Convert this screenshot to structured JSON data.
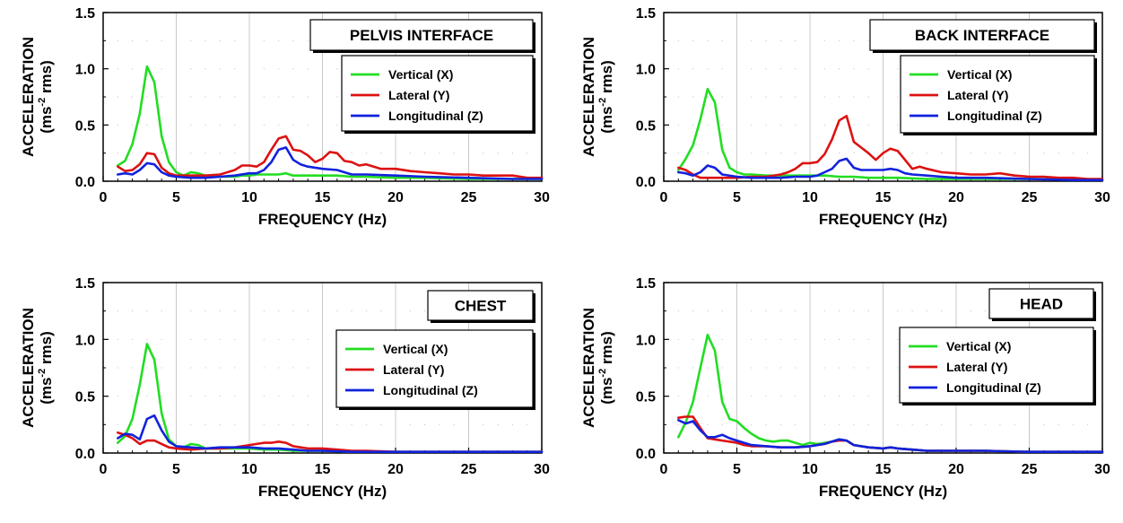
{
  "chart_data": [
    {
      "type": "line",
      "title": "PELVIS INTERFACE",
      "xlabel": "FREQUENCY (Hz)",
      "ylabel_line1": "ACCELERATION",
      "ylabel_line2_pre": "(ms",
      "ylabel_line2_sup": "-2",
      "ylabel_line2_post": " rms)",
      "xlim": [
        0,
        30
      ],
      "ylim": [
        0,
        1.5
      ],
      "xticks": [
        "0",
        "5",
        "10",
        "15",
        "20",
        "25",
        "30"
      ],
      "yticks": [
        "0.0",
        "0.5",
        "1.0",
        "1.5"
      ],
      "grid": true,
      "legend_position": "top-right",
      "series": [
        {
          "name": "Vertical (X)",
          "color": "#22dd22",
          "x": [
            1,
            1.5,
            2,
            2.5,
            3,
            3.5,
            4,
            4.5,
            5,
            5.5,
            6,
            6.5,
            7,
            7.5,
            8,
            8.5,
            9,
            9.5,
            10,
            10.5,
            11,
            11.5,
            12,
            12.5,
            13,
            13.5,
            14,
            15,
            16,
            17,
            18,
            20,
            22,
            25,
            28,
            30
          ],
          "y": [
            0.14,
            0.18,
            0.33,
            0.6,
            1.02,
            0.88,
            0.4,
            0.17,
            0.08,
            0.05,
            0.08,
            0.07,
            0.05,
            0.04,
            0.04,
            0.04,
            0.04,
            0.05,
            0.05,
            0.06,
            0.06,
            0.06,
            0.06,
            0.07,
            0.05,
            0.05,
            0.05,
            0.05,
            0.05,
            0.04,
            0.04,
            0.03,
            0.03,
            0.02,
            0.02,
            0.02
          ]
        },
        {
          "name": "Lateral (Y)",
          "color": "#dd1111",
          "x": [
            1,
            1.5,
            2,
            2.5,
            3,
            3.5,
            4,
            4.5,
            5,
            5.5,
            6,
            7,
            8,
            9,
            9.5,
            10,
            10.5,
            11,
            11.5,
            12,
            12.5,
            13,
            13.5,
            14,
            14.5,
            15,
            15.5,
            16,
            16.5,
            17,
            17.5,
            18,
            19,
            20,
            21,
            22,
            23,
            24,
            25,
            26,
            27,
            28,
            29,
            30
          ],
          "y": [
            0.13,
            0.09,
            0.1,
            0.15,
            0.25,
            0.24,
            0.12,
            0.07,
            0.05,
            0.05,
            0.05,
            0.05,
            0.06,
            0.1,
            0.14,
            0.14,
            0.13,
            0.17,
            0.28,
            0.38,
            0.4,
            0.28,
            0.27,
            0.23,
            0.17,
            0.2,
            0.26,
            0.25,
            0.18,
            0.17,
            0.14,
            0.15,
            0.11,
            0.11,
            0.09,
            0.08,
            0.07,
            0.06,
            0.06,
            0.05,
            0.05,
            0.05,
            0.03,
            0.03
          ]
        },
        {
          "name": "Longitudinal (Z)",
          "color": "#1122dd",
          "x": [
            1,
            1.5,
            2,
            2.5,
            3,
            3.5,
            4,
            4.5,
            5,
            6,
            7,
            8,
            9,
            10,
            10.5,
            11,
            11.5,
            12,
            12.5,
            13,
            13.5,
            14,
            15,
            16,
            17,
            18,
            20,
            22,
            25,
            28,
            30
          ],
          "y": [
            0.06,
            0.07,
            0.06,
            0.1,
            0.16,
            0.15,
            0.08,
            0.05,
            0.04,
            0.03,
            0.03,
            0.04,
            0.05,
            0.07,
            0.07,
            0.1,
            0.17,
            0.28,
            0.3,
            0.19,
            0.15,
            0.13,
            0.11,
            0.1,
            0.06,
            0.06,
            0.05,
            0.04,
            0.03,
            0.02,
            0.02
          ]
        }
      ]
    },
    {
      "type": "line",
      "title": "BACK INTERFACE",
      "xlabel": "FREQUENCY (Hz)",
      "ylabel_line1": "ACCELERATION",
      "ylabel_line2_pre": "(ms",
      "ylabel_line2_sup": "-2",
      "ylabel_line2_post": " rms)",
      "xlim": [
        0,
        30
      ],
      "ylim": [
        0,
        1.5
      ],
      "xticks": [
        "0",
        "5",
        "10",
        "15",
        "20",
        "25",
        "30"
      ],
      "yticks": [
        "0.0",
        "0.5",
        "1.0",
        "1.5"
      ],
      "grid": true,
      "legend_position": "top-right",
      "series": [
        {
          "name": "Vertical (X)",
          "color": "#22dd22",
          "x": [
            1,
            1.5,
            2,
            2.5,
            3,
            3.5,
            4,
            4.5,
            5,
            5.5,
            6,
            7,
            8,
            9,
            10,
            11,
            12,
            13,
            14,
            15,
            16,
            18,
            20,
            25,
            30
          ],
          "y": [
            0.1,
            0.2,
            0.32,
            0.55,
            0.82,
            0.7,
            0.28,
            0.12,
            0.08,
            0.06,
            0.06,
            0.05,
            0.05,
            0.05,
            0.05,
            0.05,
            0.04,
            0.04,
            0.03,
            0.03,
            0.03,
            0.02,
            0.02,
            0.02,
            0.01
          ]
        },
        {
          "name": "Lateral (Y)",
          "color": "#dd1111",
          "x": [
            1,
            1.5,
            2,
            2.5,
            3,
            3.5,
            4,
            5,
            6,
            7,
            8,
            8.5,
            9,
            9.5,
            10,
            10.5,
            11,
            11.5,
            12,
            12.5,
            13,
            13.5,
            14,
            14.5,
            15,
            15.5,
            16,
            16.5,
            17,
            17.5,
            18,
            19,
            20,
            21,
            22,
            23,
            24,
            25,
            26,
            27,
            28,
            29,
            30
          ],
          "y": [
            0.12,
            0.1,
            0.06,
            0.03,
            0.03,
            0.03,
            0.03,
            0.03,
            0.04,
            0.04,
            0.06,
            0.08,
            0.11,
            0.16,
            0.16,
            0.17,
            0.24,
            0.37,
            0.54,
            0.58,
            0.35,
            0.3,
            0.25,
            0.19,
            0.25,
            0.29,
            0.27,
            0.19,
            0.11,
            0.13,
            0.11,
            0.08,
            0.07,
            0.06,
            0.06,
            0.07,
            0.05,
            0.04,
            0.04,
            0.03,
            0.03,
            0.02,
            0.02
          ]
        },
        {
          "name": "Longitudinal (Z)",
          "color": "#1122dd",
          "x": [
            1,
            1.5,
            2,
            2.5,
            3,
            3.5,
            4,
            5,
            6,
            7,
            8,
            9,
            10,
            10.5,
            11,
            11.5,
            12,
            12.5,
            13,
            13.5,
            14,
            15,
            15.5,
            16,
            16.5,
            17,
            18,
            19,
            20,
            22,
            25,
            28,
            30
          ],
          "y": [
            0.08,
            0.07,
            0.05,
            0.08,
            0.14,
            0.12,
            0.06,
            0.04,
            0.03,
            0.03,
            0.03,
            0.04,
            0.04,
            0.05,
            0.08,
            0.11,
            0.18,
            0.2,
            0.12,
            0.1,
            0.1,
            0.1,
            0.11,
            0.1,
            0.07,
            0.06,
            0.05,
            0.04,
            0.03,
            0.03,
            0.02,
            0.01,
            0.01
          ]
        }
      ]
    },
    {
      "type": "line",
      "title": "CHEST",
      "xlabel": "FREQUENCY (Hz)",
      "ylabel_line1": "ACCELERATION",
      "ylabel_line2_pre": "(ms",
      "ylabel_line2_sup": "-2",
      "ylabel_line2_post": " rms)",
      "xlim": [
        0,
        30
      ],
      "ylim": [
        0,
        1.5
      ],
      "xticks": [
        "0",
        "5",
        "10",
        "15",
        "20",
        "25",
        "30"
      ],
      "yticks": [
        "0.0",
        "0.5",
        "1.0",
        "1.5"
      ],
      "grid": true,
      "legend_position": "top-right",
      "series": [
        {
          "name": "Vertical (X)",
          "color": "#22dd22",
          "x": [
            1,
            1.5,
            2,
            2.5,
            3,
            3.5,
            4,
            4.5,
            5,
            5.5,
            6,
            6.5,
            7,
            8,
            9,
            10,
            11,
            12,
            13,
            14,
            15,
            17,
            20,
            25,
            30
          ],
          "y": [
            0.09,
            0.15,
            0.3,
            0.6,
            0.96,
            0.82,
            0.35,
            0.12,
            0.06,
            0.05,
            0.08,
            0.07,
            0.04,
            0.04,
            0.04,
            0.04,
            0.03,
            0.03,
            0.02,
            0.02,
            0.02,
            0.01,
            0.01,
            0.01,
            0.01
          ]
        },
        {
          "name": "Lateral (Y)",
          "color": "#dd1111",
          "x": [
            1,
            1.5,
            2,
            2.5,
            3,
            3.5,
            4,
            4.5,
            5,
            6,
            7,
            8,
            9,
            10,
            10.5,
            11,
            11.5,
            12,
            12.5,
            13,
            13.5,
            14,
            15,
            16,
            17,
            18,
            20,
            25,
            30
          ],
          "y": [
            0.18,
            0.16,
            0.13,
            0.08,
            0.11,
            0.11,
            0.08,
            0.05,
            0.04,
            0.03,
            0.04,
            0.04,
            0.05,
            0.07,
            0.08,
            0.09,
            0.09,
            0.1,
            0.09,
            0.06,
            0.05,
            0.04,
            0.04,
            0.03,
            0.02,
            0.02,
            0.01,
            0.01,
            0.01
          ]
        },
        {
          "name": "Longitudinal (Z)",
          "color": "#1122dd",
          "x": [
            1,
            1.5,
            2,
            2.5,
            3,
            3.5,
            4,
            4.5,
            5,
            6,
            7,
            8,
            9,
            10,
            11,
            12,
            13,
            14,
            15,
            17,
            20,
            25,
            30
          ],
          "y": [
            0.13,
            0.17,
            0.16,
            0.12,
            0.3,
            0.33,
            0.2,
            0.1,
            0.06,
            0.05,
            0.04,
            0.05,
            0.05,
            0.05,
            0.04,
            0.04,
            0.03,
            0.02,
            0.02,
            0.01,
            0.01,
            0.01,
            0.01
          ]
        }
      ]
    },
    {
      "type": "line",
      "title": "HEAD",
      "xlabel": "FREQUENCY (Hz)",
      "ylabel_line1": "ACCELERATION",
      "ylabel_line2_pre": "(ms",
      "ylabel_line2_sup": "-2",
      "ylabel_line2_post": " rms)",
      "xlim": [
        0,
        30
      ],
      "ylim": [
        0,
        1.5
      ],
      "xticks": [
        "0",
        "5",
        "10",
        "15",
        "20",
        "25",
        "30"
      ],
      "yticks": [
        "0.0",
        "0.5",
        "1.0",
        "1.5"
      ],
      "grid": true,
      "legend_position": "top-right",
      "series": [
        {
          "name": "Vertical (X)",
          "color": "#22dd22",
          "x": [
            1,
            1.5,
            2,
            2.5,
            3,
            3.5,
            4,
            4.5,
            5,
            5.5,
            6,
            6.5,
            7,
            7.5,
            8,
            8.5,
            9,
            9.5,
            10,
            10.5,
            11,
            11.5,
            12,
            12.5,
            13,
            14,
            15,
            15.5,
            16,
            17,
            18,
            20,
            22,
            25,
            30
          ],
          "y": [
            0.14,
            0.27,
            0.45,
            0.75,
            1.04,
            0.9,
            0.45,
            0.3,
            0.28,
            0.22,
            0.17,
            0.13,
            0.11,
            0.1,
            0.11,
            0.11,
            0.09,
            0.07,
            0.09,
            0.08,
            0.09,
            0.1,
            0.12,
            0.11,
            0.07,
            0.05,
            0.04,
            0.05,
            0.04,
            0.03,
            0.02,
            0.02,
            0.02,
            0.01,
            0.01
          ]
        },
        {
          "name": "Lateral (Y)",
          "color": "#dd1111",
          "x": [
            1,
            1.5,
            2,
            2.5,
            3,
            3.5,
            4,
            4.5,
            5,
            5.5,
            6,
            7,
            8,
            9,
            10,
            11,
            11.5,
            12,
            12.5,
            13,
            14,
            15,
            15.5,
            16,
            17,
            18,
            20,
            22,
            25,
            30
          ],
          "y": [
            0.31,
            0.32,
            0.32,
            0.22,
            0.13,
            0.12,
            0.11,
            0.1,
            0.09,
            0.07,
            0.06,
            0.06,
            0.05,
            0.05,
            0.06,
            0.08,
            0.1,
            0.11,
            0.11,
            0.07,
            0.05,
            0.04,
            0.05,
            0.04,
            0.03,
            0.02,
            0.02,
            0.02,
            0.01,
            0.01
          ]
        },
        {
          "name": "Longitudinal (Z)",
          "color": "#1122dd",
          "x": [
            1,
            1.5,
            2,
            2.5,
            3,
            3.5,
            4,
            4.5,
            5,
            5.5,
            6,
            7,
            8,
            9,
            10,
            11,
            11.5,
            12,
            12.5,
            13,
            14,
            15,
            15.5,
            16,
            17,
            18,
            20,
            22,
            25,
            30
          ],
          "y": [
            0.29,
            0.26,
            0.28,
            0.2,
            0.14,
            0.14,
            0.16,
            0.13,
            0.11,
            0.09,
            0.07,
            0.06,
            0.05,
            0.05,
            0.06,
            0.08,
            0.1,
            0.12,
            0.11,
            0.07,
            0.05,
            0.04,
            0.05,
            0.04,
            0.03,
            0.02,
            0.02,
            0.02,
            0.01,
            0.01
          ]
        }
      ]
    }
  ]
}
